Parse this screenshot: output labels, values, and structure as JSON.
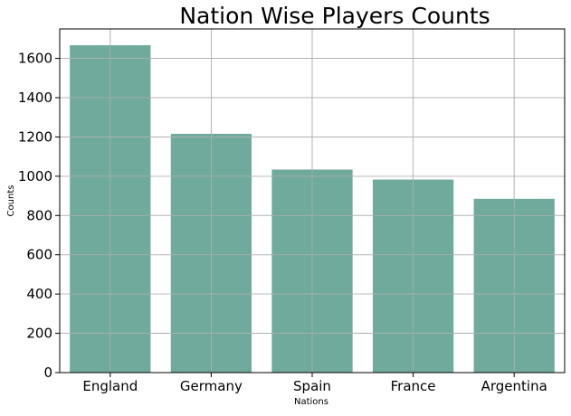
{
  "chart_data": {
    "type": "bar",
    "title": "Nation Wise Players Counts",
    "xlabel": "Nations",
    "ylabel": "Counts",
    "categories": [
      "England",
      "Germany",
      "Spain",
      "France",
      "Argentina"
    ],
    "values": [
      1667,
      1216,
      1034,
      983,
      885
    ],
    "ylim": [
      0,
      1750
    ],
    "yticks": [
      0,
      200,
      400,
      600,
      800,
      1000,
      1200,
      1400,
      1600
    ],
    "grid": true,
    "bar_color": "#6faa9c",
    "grid_color": "#b0b0b0"
  }
}
